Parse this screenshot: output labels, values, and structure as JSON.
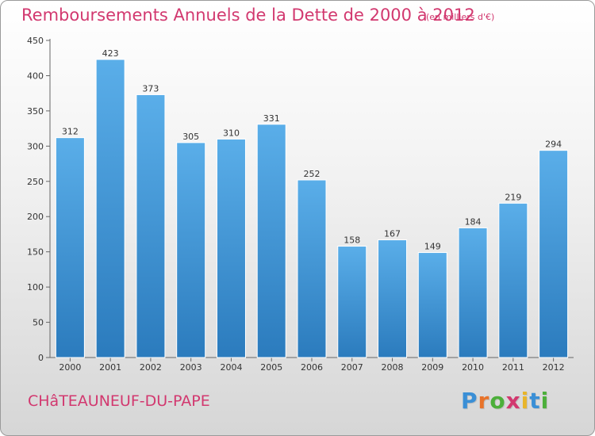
{
  "chart_data": {
    "type": "bar",
    "title": "Remboursements Annuels de la Dette de 2000 à 2012",
    "subtitle": "(en milliers d'€)",
    "categories": [
      "2000",
      "2001",
      "2002",
      "2003",
      "2004",
      "2005",
      "2006",
      "2007",
      "2008",
      "2009",
      "2010",
      "2011",
      "2012"
    ],
    "values": [
      312,
      423,
      373,
      305,
      310,
      331,
      252,
      158,
      167,
      149,
      184,
      219,
      294
    ],
    "yticks": [
      0,
      50,
      100,
      150,
      200,
      250,
      300,
      350,
      400,
      450
    ],
    "ylim": [
      0,
      450
    ],
    "grid": false,
    "bar_color_top": "#5aaee9",
    "bar_color_bottom": "#2b7bbd"
  },
  "commune": "CHâTEAUNEUF-DU-PAPE",
  "logo": {
    "letters": [
      "P",
      "r",
      "o",
      "x",
      "i",
      "t",
      "i"
    ],
    "colors": [
      "#3a8fd6",
      "#e8732a",
      "#4caf3a",
      "#d2386f",
      "#e8b52a",
      "#3a8fd6",
      "#4caf3a"
    ]
  }
}
